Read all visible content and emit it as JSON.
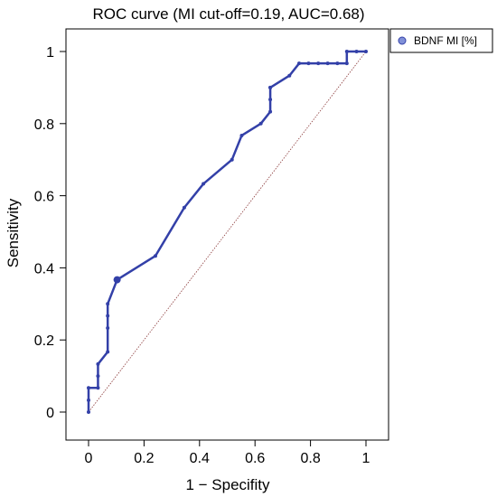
{
  "chart_data": {
    "type": "line",
    "title": "ROC curve (MI cut-off=0.19, AUC=0.68)",
    "xlabel": "1 − Specifity",
    "ylabel": "Sensitivity",
    "xlim": [
      0,
      1
    ],
    "ylim": [
      0,
      1
    ],
    "x_ticks": [
      "0",
      "0.2",
      "0.4",
      "0.6",
      "0.8",
      "1"
    ],
    "y_ticks": [
      "0",
      "0.2",
      "0.4",
      "0.6",
      "0.8",
      "1"
    ],
    "grid": false,
    "legend_position": "top-right",
    "series": [
      {
        "name": "BDNF MI [%]",
        "color": "#3340a8",
        "x": [
          0,
          0,
          0,
          0.034,
          0.034,
          0.034,
          0.069,
          0.069,
          0.069,
          0.069,
          0.103,
          0.103,
          0.241,
          0.345,
          0.414,
          0.517,
          0.552,
          0.621,
          0.655,
          0.655,
          0.655,
          0.655,
          0.724,
          0.759,
          0.793,
          0.828,
          0.862,
          0.897,
          0.931,
          0.931,
          0.966,
          1.0
        ],
        "y": [
          0,
          0.033,
          0.067,
          0.067,
          0.1,
          0.133,
          0.167,
          0.233,
          0.267,
          0.3,
          0.367,
          0.367,
          0.433,
          0.567,
          0.633,
          0.7,
          0.767,
          0.8,
          0.833,
          0.867,
          0.9,
          0.9,
          0.933,
          0.967,
          0.967,
          0.967,
          0.967,
          0.967,
          0.967,
          1.0,
          1.0,
          1.0
        ]
      }
    ],
    "reference_line": {
      "x": [
        0,
        1
      ],
      "y": [
        0,
        1
      ],
      "color": "#8b3a3a",
      "style": "dotted"
    }
  }
}
